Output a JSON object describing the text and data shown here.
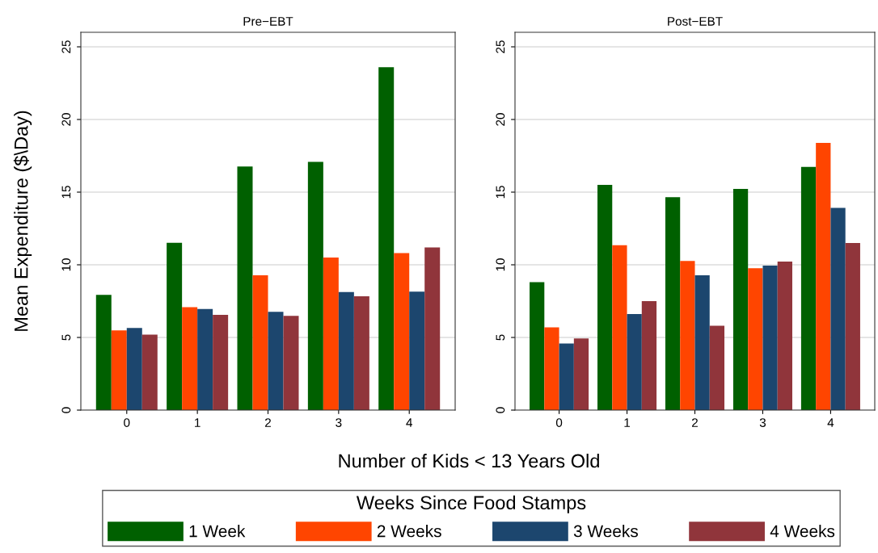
{
  "chart_data": [
    {
      "type": "bar",
      "title": "Pre−EBT",
      "ylabel": "Mean Expenditure ($\\Day)",
      "xlabel": "Number of Kids < 13 Years Old",
      "legend_title": "Weeks Since Food Stamps",
      "legend": "bottom",
      "grid": "y",
      "categories": [
        "0",
        "1",
        "2",
        "3",
        "4"
      ],
      "ylim": [
        0,
        26
      ],
      "yticks": [
        0,
        5,
        10,
        15,
        20,
        25
      ],
      "series": [
        {
          "name": "1 Week",
          "color": "#006000",
          "values": [
            7.93,
            11.52,
            16.76,
            17.09,
            23.6
          ]
        },
        {
          "name": "2 Weeks",
          "color": "#ff4500",
          "values": [
            5.48,
            7.09,
            9.28,
            10.5,
            10.81
          ]
        },
        {
          "name": "3 Weeks",
          "color": "#1c466e",
          "values": [
            5.65,
            6.96,
            6.76,
            8.13,
            8.15
          ]
        },
        {
          "name": "4 Weeks",
          "color": "#90353b",
          "values": [
            5.2,
            6.56,
            6.48,
            7.83,
            11.19
          ]
        }
      ]
    },
    {
      "type": "bar",
      "title": "Post−EBT",
      "grid": "y",
      "categories": [
        "0",
        "1",
        "2",
        "3",
        "4"
      ],
      "ylim": [
        0,
        26
      ],
      "yticks": [
        0,
        5,
        10,
        15,
        20,
        25
      ],
      "series": [
        {
          "color": "#006000",
          "values": [
            8.81,
            15.5,
            14.65,
            15.22,
            16.74
          ]
        },
        {
          "color": "#ff4500",
          "values": [
            5.7,
            11.35,
            10.26,
            9.76,
            18.39
          ]
        },
        {
          "color": "#1c466e",
          "values": [
            4.59,
            6.61,
            9.28,
            9.94,
            13.91
          ]
        },
        {
          "color": "#90353b",
          "values": [
            4.93,
            7.5,
            5.8,
            10.22,
            11.5
          ]
        }
      ]
    }
  ]
}
